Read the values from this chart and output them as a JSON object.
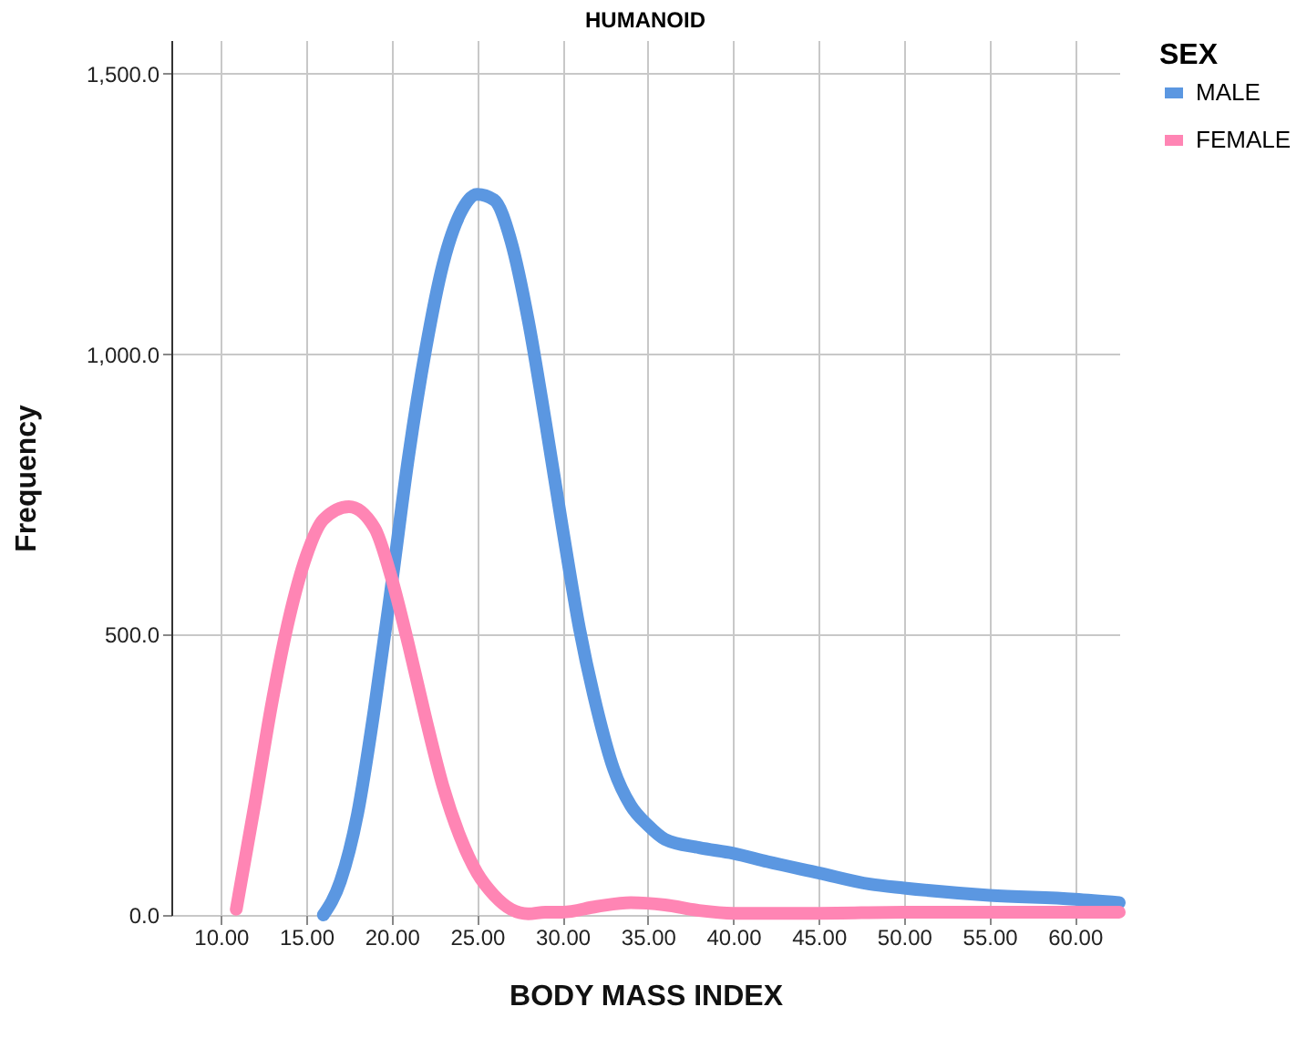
{
  "chart_data": {
    "type": "line",
    "title": "HUMANOID",
    "xlabel": "BODY MASS INDEX",
    "ylabel": "Frequency",
    "legend_title": "SEX",
    "legend": "top right",
    "grid": true,
    "line_style": "solid",
    "xlim": [
      7.1,
      62.6
    ],
    "ylim": [
      0,
      1560
    ],
    "xticks": [
      {
        "value": 10,
        "label": "10.00"
      },
      {
        "value": 15,
        "label": "15.00"
      },
      {
        "value": 20,
        "label": "20.00"
      },
      {
        "value": 25,
        "label": "25.00"
      },
      {
        "value": 30,
        "label": "30.00"
      },
      {
        "value": 35,
        "label": "35.00"
      },
      {
        "value": 40,
        "label": "40.00"
      },
      {
        "value": 45,
        "label": "45.00"
      },
      {
        "value": 50,
        "label": "50.00"
      },
      {
        "value": 55,
        "label": "55.00"
      },
      {
        "value": 60,
        "label": "60.00"
      }
    ],
    "yticks": [
      {
        "value": 0,
        "label": "0.0"
      },
      {
        "value": 500,
        "label": "500.0"
      },
      {
        "value": 1000,
        "label": "1,000.0"
      },
      {
        "value": 1500,
        "label": "1,500.0"
      }
    ],
    "series": [
      {
        "name": "MALE",
        "color": "#5b97e1",
        "x": [
          16,
          17,
          18,
          19,
          20,
          21,
          22,
          23,
          24,
          25,
          26,
          27,
          28,
          29,
          30,
          31,
          32,
          33,
          34,
          35,
          36,
          38,
          40,
          42,
          45,
          48,
          50,
          55,
          60,
          62.6
        ],
        "values": [
          0,
          60,
          180,
          370,
          590,
          820,
          1010,
          1160,
          1250,
          1285,
          1275,
          1200,
          1060,
          880,
          690,
          510,
          370,
          260,
          195,
          160,
          135,
          120,
          110,
          95,
          75,
          55,
          48,
          35,
          28,
          22
        ]
      },
      {
        "name": "FEMALE",
        "color": "#ff85b4",
        "x": [
          10.9,
          12,
          13,
          14,
          15,
          16,
          17.5,
          19,
          20,
          21,
          22,
          23,
          24,
          25,
          26,
          27,
          28,
          29,
          30,
          32,
          34,
          36,
          38,
          40,
          45,
          50,
          55,
          62.6
        ],
        "values": [
          10,
          200,
          380,
          530,
          640,
          705,
          728,
          690,
          600,
          480,
          350,
          230,
          140,
          75,
          35,
          10,
          2,
          5,
          5,
          15,
          22,
          18,
          8,
          3,
          3,
          5,
          5,
          5
        ]
      }
    ]
  }
}
